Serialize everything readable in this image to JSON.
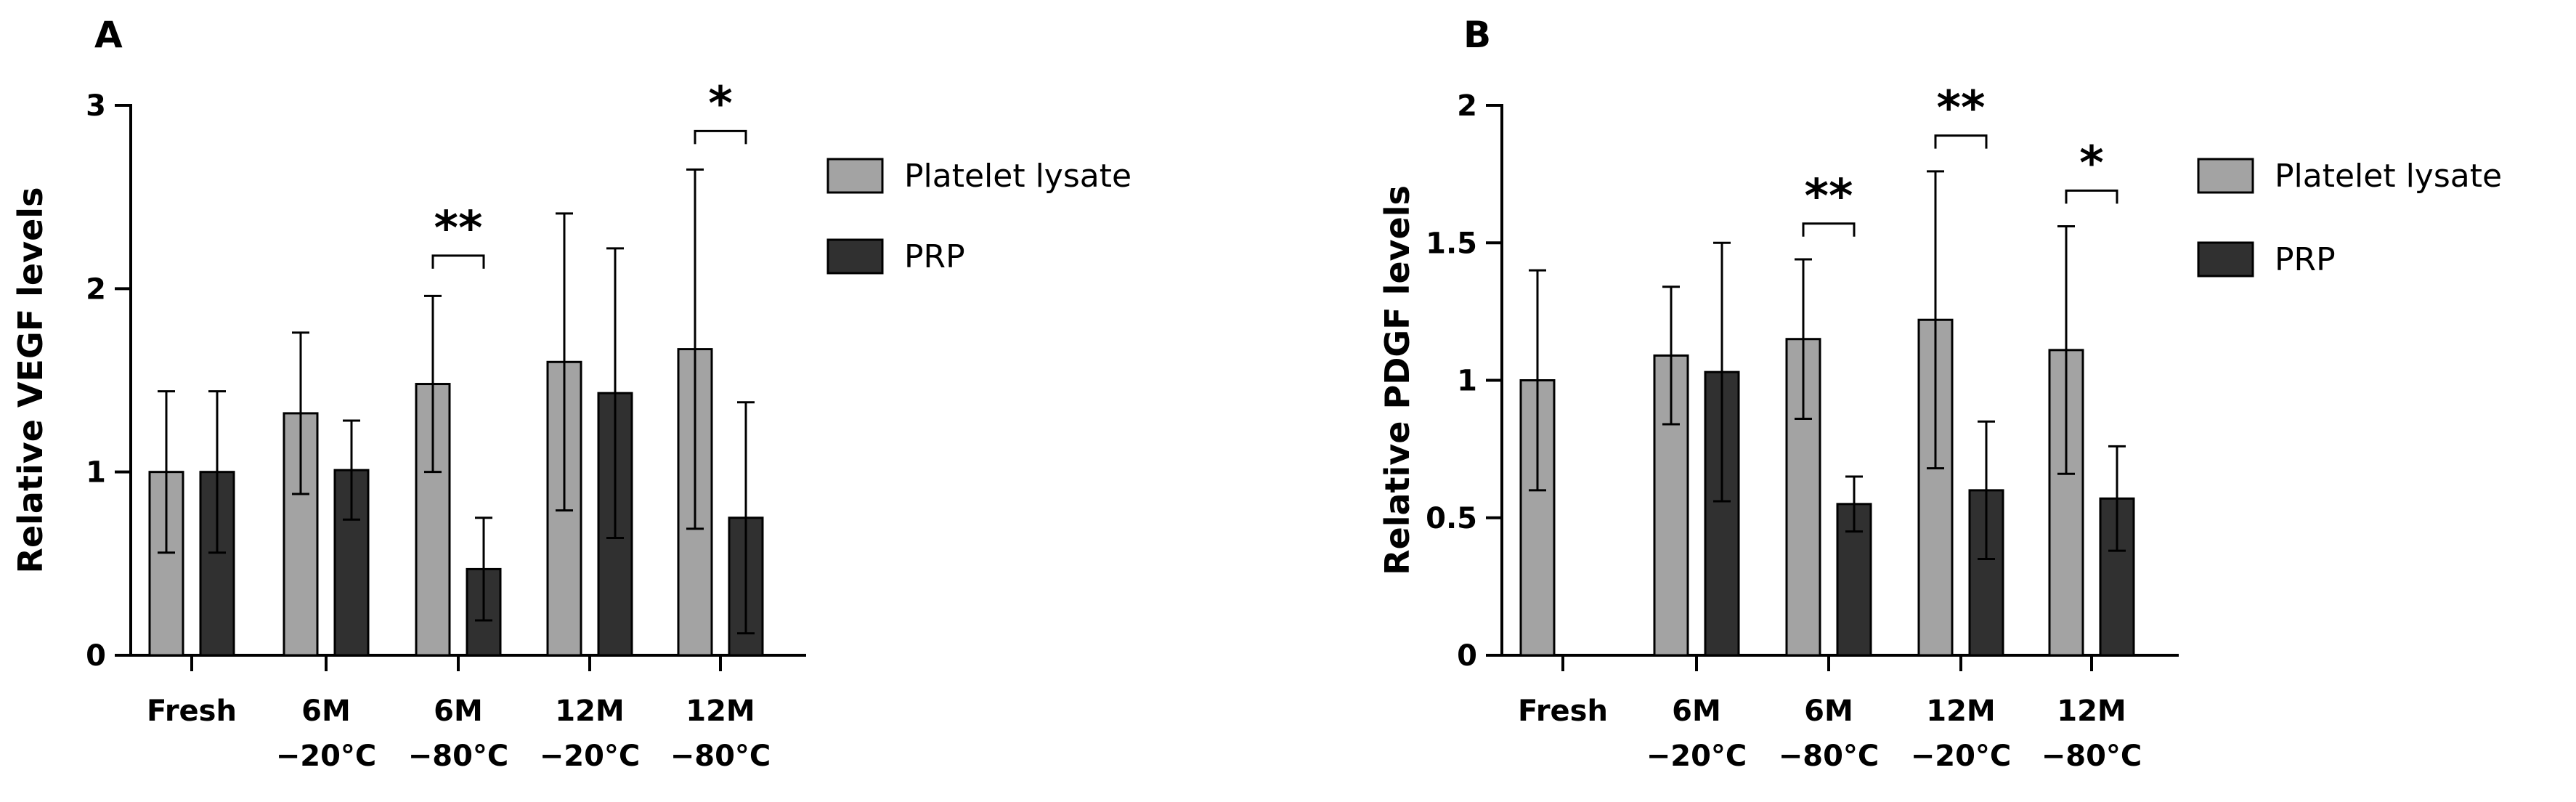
{
  "chart_data": [
    {
      "panel": "A",
      "type": "bar",
      "ylabel": "Relative VEGF levels",
      "ylim": [
        0,
        3
      ],
      "yticks": [
        "0",
        "1",
        "2",
        "3"
      ],
      "categories": [
        [
          "Fresh"
        ],
        [
          "6M",
          "−20°C"
        ],
        [
          "6M",
          "−80°C"
        ],
        [
          "12M",
          "−20°C"
        ],
        [
          "12M",
          "−80°C"
        ]
      ],
      "series": [
        {
          "name": "Platelet lysate",
          "color": "#a3a3a3",
          "values": [
            1.0,
            1.32,
            1.48,
            1.6,
            1.67
          ],
          "errors": [
            0.44,
            0.44,
            0.48,
            0.81,
            0.98
          ]
        },
        {
          "name": "PRP",
          "color": "#303030",
          "values": [
            1.0,
            1.01,
            0.47,
            1.43,
            0.75
          ],
          "errors": [
            0.44,
            0.27,
            0.28,
            0.79,
            0.63
          ]
        }
      ],
      "significance": [
        {
          "category": 2,
          "label": "**",
          "bracket_y": 2.18
        },
        {
          "category": 4,
          "label": "*",
          "bracket_y": 2.86
        }
      ],
      "legend_position": "top-right",
      "grid": false
    },
    {
      "panel": "B",
      "type": "bar",
      "ylabel": "Relative PDGF levels",
      "ylim": [
        0,
        2
      ],
      "yticks": [
        "0",
        "0.5",
        "1",
        "1.5",
        "2"
      ],
      "categories": [
        [
          "Fresh"
        ],
        [
          "6M",
          "−20°C"
        ],
        [
          "6M",
          "−80°C"
        ],
        [
          "12M",
          "−20°C"
        ],
        [
          "12M",
          "−80°C"
        ]
      ],
      "series": [
        {
          "name": "Platelet lysate",
          "color": "#a3a3a3",
          "values": [
            1.0,
            1.09,
            1.15,
            1.22,
            1.11
          ],
          "errors": [
            0.4,
            0.25,
            0.29,
            0.54,
            0.45
          ]
        },
        {
          "name": "PRP",
          "color": "#303030",
          "values": [
            null,
            1.03,
            0.55,
            0.6,
            0.57
          ],
          "errors": [
            null,
            0.47,
            0.1,
            0.25,
            0.19
          ]
        }
      ],
      "significance": [
        {
          "category": 2,
          "label": "**",
          "bracket_y": 1.57
        },
        {
          "category": 3,
          "label": "**",
          "bracket_y": 1.89
        },
        {
          "category": 4,
          "label": "*",
          "bracket_y": 1.69
        }
      ],
      "legend_position": "top-right",
      "grid": false
    }
  ]
}
